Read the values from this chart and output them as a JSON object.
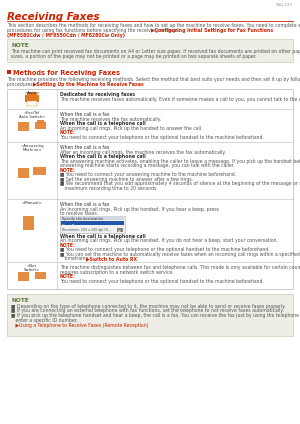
{
  "page_id": "5ALJ-033",
  "title": "Receiving Faxes",
  "title_color": "#cc2200",
  "note_bg": "#eeeee6",
  "note_border": "#ccccb8",
  "note1_title_color": "#5a7a3a",
  "note2_title_color": "#5a7a3a",
  "section_title_color": "#cc2200",
  "table_border": "#b8b8b8",
  "icon_color": "#e07820",
  "link_color": "#cc2200",
  "bg_color": "#ffffff",
  "text_color": "#555555",
  "bold_color": "#333333"
}
